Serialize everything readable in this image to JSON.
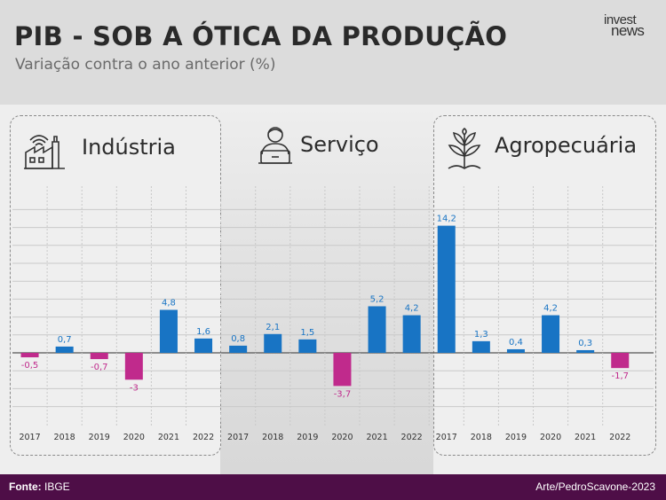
{
  "header": {
    "title": "PIB - SOB A ÓTICA DA PRODUÇÃO",
    "subtitle": "Variação contra o ano anterior (%)",
    "logo_line1": "invest",
    "logo_line2": "news"
  },
  "sectors": [
    {
      "name": "Indústria",
      "icon": "factory-icon"
    },
    {
      "name": "Serviço",
      "icon": "worker-laptop-icon"
    },
    {
      "name": "Agropecuária",
      "icon": "plant-icon"
    }
  ],
  "footer": {
    "source_label": "Fonte:",
    "source_value": "IBGE",
    "credit": "Arte/PedroScavone-2023"
  },
  "colors": {
    "positive": "#1874c4",
    "negative": "#c02a8c",
    "footer_bg": "#4e0e47"
  },
  "chart_data": {
    "type": "bar",
    "groups": [
      "Indústria",
      "Serviço",
      "Agropecuária"
    ],
    "categories": [
      "2017",
      "2018",
      "2019",
      "2020",
      "2021",
      "2022"
    ],
    "series": [
      {
        "name": "Indústria",
        "values": [
          -0.5,
          0.7,
          -0.7,
          -3,
          4.8,
          1.6
        ],
        "labels": [
          "-0,5",
          "0,7",
          "-0,7",
          "-3",
          "4,8",
          "1,6"
        ]
      },
      {
        "name": "Serviço",
        "values": [
          0.8,
          2.1,
          1.5,
          -3.7,
          5.2,
          4.2
        ],
        "labels": [
          "0,8",
          "2,1",
          "1,5",
          "-3,7",
          "5,2",
          "4,2"
        ]
      },
      {
        "name": "Agropecuária",
        "values": [
          14.2,
          1.3,
          0.4,
          4.2,
          0.3,
          -1.7
        ],
        "labels": [
          "14,2",
          "1,3",
          "0,4",
          "4,2",
          "0,3",
          "-1,7"
        ]
      }
    ],
    "title": "PIB - SOB A ÓTICA DA PRODUÇÃO",
    "ylabel": "",
    "ylim": [
      -6,
      16
    ],
    "grid": true
  }
}
